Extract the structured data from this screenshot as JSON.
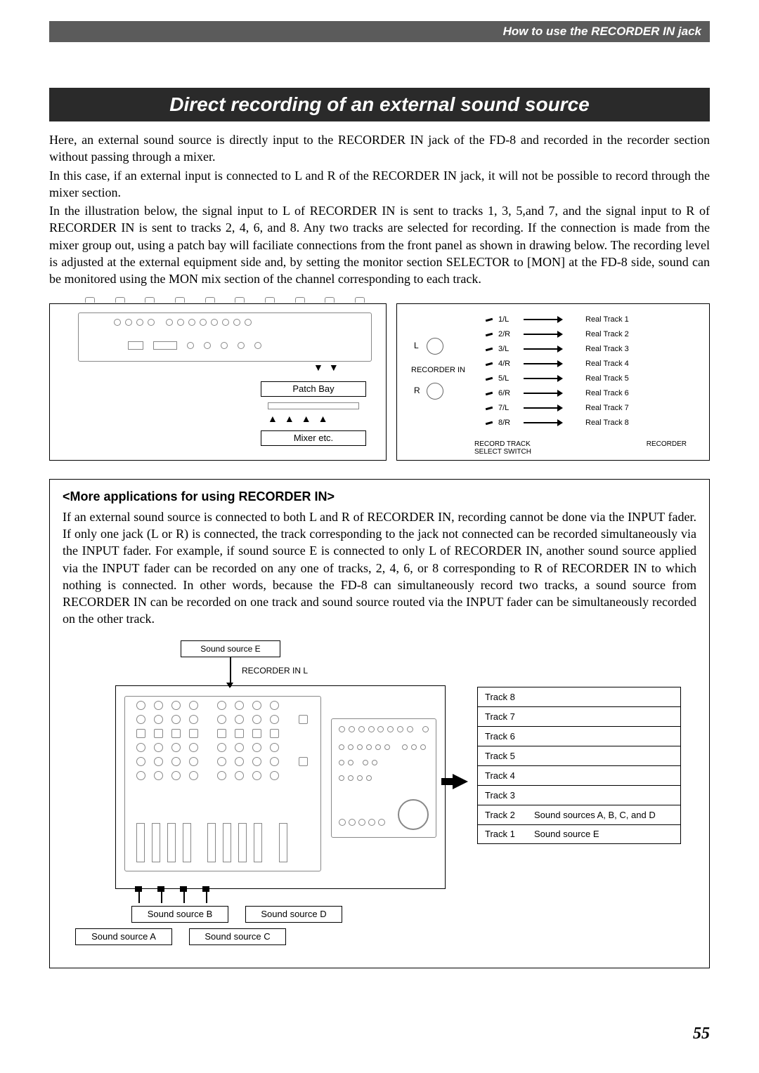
{
  "header": {
    "right_text": "How to use the RECORDER IN jack"
  },
  "title": "Direct recording of an external sound source",
  "paragraphs": {
    "p1": "Here, an external sound source is directly input to the RECORDER IN jack of the FD-8 and recorded in the recorder section without passing through a mixer.",
    "p2": "In this case, if an external input is connected to L and R of the RECORDER IN jack, it will not be possible to record through the mixer section.",
    "p3": "In the illustration below, the signal input to L of RECORDER IN is sent to tracks 1, 3, 5,and 7, and the signal input to R of RECORDER IN is sent to tracks 2, 4, 6, and 8.  Any two tracks are selected for recording.  If the connection is made from the mixer group out, using a patch bay will faciliate connections from the front panel as shown in drawing below.  The recording level is adjusted at the external equipment side and, by setting the monitor section SELECTOR to [MON] at the FD-8 side, sound can be monitored using the MON mix section of the channel corresponding to each track."
  },
  "diagram1": {
    "left": {
      "patch_bay": "Patch Bay",
      "mixer_etc": "Mixer etc."
    },
    "right": {
      "l_label": "L",
      "r_label": "R",
      "recorder_in": "RECORDER IN",
      "record_track_select": "RECORD TRACK\nSELECT SWITCH",
      "recorder": "RECORDER",
      "routes": [
        {
          "sel": "1/L",
          "track": "Real Track 1"
        },
        {
          "sel": "2/R",
          "track": "Real Track 2"
        },
        {
          "sel": "3/L",
          "track": "Real Track 3"
        },
        {
          "sel": "4/R",
          "track": "Real Track 4"
        },
        {
          "sel": "5/L",
          "track": "Real Track 5"
        },
        {
          "sel": "6/R",
          "track": "Real Track 6"
        },
        {
          "sel": "7/L",
          "track": "Real Track 7"
        },
        {
          "sel": "8/R",
          "track": "Real Track 8"
        }
      ]
    }
  },
  "more_apps": {
    "heading": "<More applications for using RECORDER IN>",
    "body": "If an external sound source is connected to both L and R of RECORDER IN, recording cannot be done via the INPUT fader.  If only one jack (L or R) is connected, the track corresponding to the jack not connected can be recorded simultaneously via the INPUT fader.  For example, if sound source E is connected to only L of RECORDER IN, another sound source applied via the INPUT fader can be recorded on any one of tracks, 2, 4, 6, or 8 corresponding to R of RECORDER IN to which nothing is connected.  In other words, because the FD-8 can simultaneously record two tracks, a sound source from RECORDER IN can be recorded on one track and sound source routed via the INPUT fader can be simultaneously recorded on the other track."
  },
  "diagram2": {
    "sound_source_e": "Sound source E",
    "recorder_in_l": "RECORDER IN L",
    "tracks": [
      {
        "name": "Track 8",
        "content": ""
      },
      {
        "name": "Track 7",
        "content": ""
      },
      {
        "name": "Track 6",
        "content": ""
      },
      {
        "name": "Track 5",
        "content": ""
      },
      {
        "name": "Track 4",
        "content": ""
      },
      {
        "name": "Track 3",
        "content": ""
      },
      {
        "name": "Track 2",
        "content": "Sound sources A, B, C, and D"
      },
      {
        "name": "Track 1",
        "content": "Sound source E"
      }
    ],
    "sources": {
      "a": "Sound source A",
      "b": "Sound source B",
      "c": "Sound source C",
      "d": "Sound source D"
    }
  },
  "page_number": "55",
  "colors": {
    "header_bg": "#5b5b5b",
    "title_bg": "#2a2a2a",
    "text": "#000000",
    "diagram_stroke": "#888888"
  }
}
